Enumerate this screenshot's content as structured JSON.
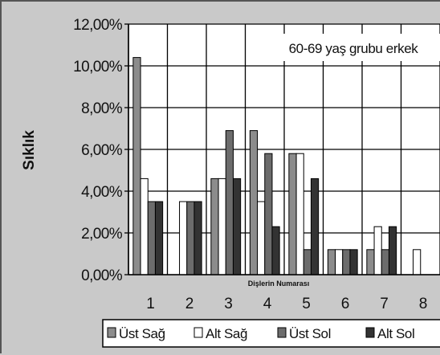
{
  "chart_data": {
    "type": "bar",
    "title": "",
    "annotation": "60-69 yaş grubu erkek",
    "ylabel": "Sıklık",
    "xlabel": "Dişlerin Numarası",
    "ylim": [
      0,
      12
    ],
    "y_ticks": [
      "0,00%",
      "2,00%",
      "4,00%",
      "6,00%",
      "8,00%",
      "10,00%",
      "12,00%"
    ],
    "categories": [
      "1",
      "2",
      "3",
      "4",
      "5",
      "6",
      "7",
      "8"
    ],
    "grid": "vertical and horizontal",
    "legend_position": "bottom",
    "series": [
      {
        "name": "Üst Sağ",
        "color": "#8c8c8c",
        "values": [
          10.4,
          0,
          4.6,
          6.9,
          5.8,
          1.2,
          1.2,
          0
        ]
      },
      {
        "name": "Alt Sağ",
        "color": "#ffffff",
        "values": [
          4.6,
          3.5,
          4.6,
          3.5,
          5.8,
          1.2,
          2.3,
          1.2
        ]
      },
      {
        "name": "Üst Sol",
        "color": "#6c6c6c",
        "values": [
          3.5,
          3.5,
          6.9,
          5.8,
          1.2,
          1.2,
          1.2,
          0
        ]
      },
      {
        "name": "Alt Sol",
        "color": "#333333",
        "values": [
          3.5,
          3.5,
          4.6,
          2.3,
          4.6,
          1.2,
          2.3,
          0
        ]
      }
    ]
  }
}
